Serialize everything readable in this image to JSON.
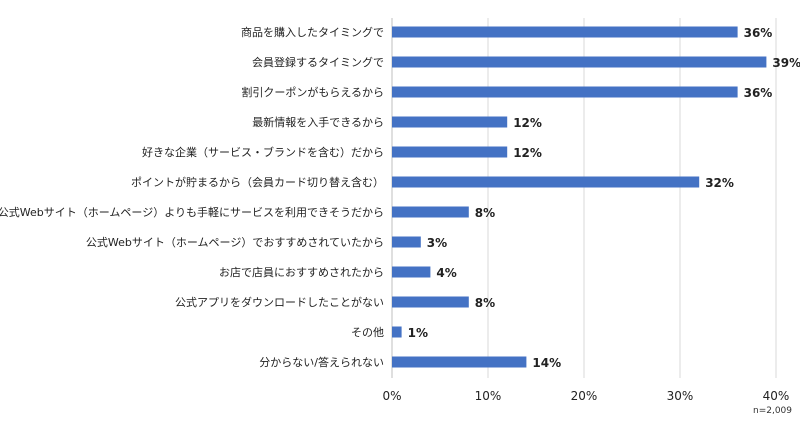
{
  "chart_data": {
    "type": "bar",
    "orientation": "horizontal",
    "categories": [
      "商品を購入したタイミングで",
      "会員登録するタイミングで",
      "割引クーポンがもらえるから",
      "最新情報を入手できるから",
      "好きな企業（サービス・ブランドを含む）だから",
      "ポイントが貯まるから（会員カード切り替え含む）",
      "公式Webサイト（ホームページ）よりも手軽にサービスを利用できそうだから",
      "公式Webサイト（ホームページ）でおすすめされていたから",
      "お店で店員におすすめされたから",
      "公式アプリをダウンロードしたことがない",
      "その他",
      "分からない/答えられない"
    ],
    "values": [
      36,
      39,
      36,
      12,
      12,
      32,
      8,
      3,
      4,
      8,
      1,
      14
    ],
    "value_labels": [
      "36%",
      "39%",
      "36%",
      "12%",
      "12%",
      "32%",
      "8%",
      "3%",
      "4%",
      "8%",
      "1%",
      "14%"
    ],
    "xlim": [
      0,
      40
    ],
    "xticks": [
      "0%",
      "10%",
      "20%",
      "30%",
      "40%"
    ],
    "grid": true,
    "bar_color": "#4472C4",
    "note": "n=2,009"
  }
}
